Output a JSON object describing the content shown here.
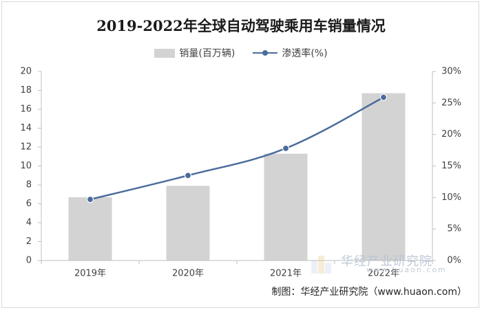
{
  "chart_data": {
    "type": "bar",
    "title": "2019-2022年全球自动驾驶乘用车销量情况",
    "categories": [
      "2019年",
      "2020年",
      "2021年",
      "2022年"
    ],
    "series": [
      {
        "name": "销量(百万辆)",
        "type": "bar",
        "axis": "left",
        "values": [
          6.7,
          7.9,
          11.3,
          17.7
        ],
        "color": "#d3d3d3"
      },
      {
        "name": "渗透率(%)",
        "type": "line",
        "axis": "right",
        "values": [
          9.7,
          13.5,
          17.8,
          25.9
        ],
        "color": "#4a6c9b"
      }
    ],
    "y_left": {
      "min": 0,
      "max": 20,
      "step": 2,
      "ticks": [
        "0",
        "2",
        "4",
        "6",
        "8",
        "10",
        "12",
        "14",
        "16",
        "18",
        "20"
      ]
    },
    "y_right": {
      "min": 0,
      "max": 30,
      "step": 5,
      "ticks": [
        "0%",
        "5%",
        "10%",
        "15%",
        "20%",
        "25%",
        "30%"
      ]
    },
    "grid": false,
    "legend_position": "top-center"
  },
  "watermark": {
    "name": "华经产业研究院",
    "url": "www.huaon.com"
  },
  "source": "制图：华经产业研究院（www.huaon.com）"
}
